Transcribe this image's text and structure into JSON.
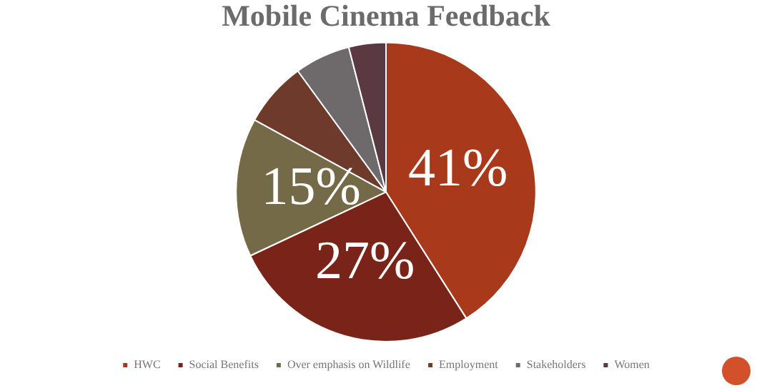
{
  "chart_data": {
    "type": "pie",
    "title": "Mobile Cinema Feedback",
    "categories": [
      "HWC",
      "Social Benefits",
      "Over emphasis on Wildlife",
      "Employment",
      "Stakeholders",
      "Women"
    ],
    "values": [
      41,
      27,
      15,
      7,
      6,
      4
    ],
    "value_labels": [
      "41%",
      "27%",
      "15%",
      null,
      null,
      null
    ],
    "colors": [
      "#a8391a",
      "#7a2318",
      "#756a48",
      "#6e3a2c",
      "#6e6a6c",
      "#5a3a40"
    ],
    "legend": "bottom"
  }
}
